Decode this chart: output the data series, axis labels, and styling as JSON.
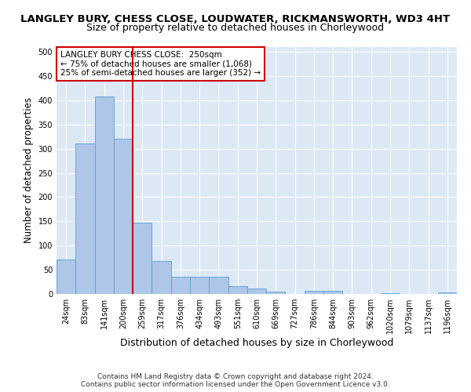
{
  "title": "LANGLEY BURY, CHESS CLOSE, LOUDWATER, RICKMANSWORTH, WD3 4HT",
  "subtitle": "Size of property relative to detached houses in Chorleywood",
  "xlabel": "Distribution of detached houses by size in Chorleywood",
  "ylabel": "Number of detached properties",
  "categories": [
    "24sqm",
    "83sqm",
    "141sqm",
    "200sqm",
    "259sqm",
    "317sqm",
    "376sqm",
    "434sqm",
    "493sqm",
    "551sqm",
    "610sqm",
    "669sqm",
    "727sqm",
    "786sqm",
    "844sqm",
    "903sqm",
    "962sqm",
    "1020sqm",
    "1079sqm",
    "1137sqm",
    "1196sqm"
  ],
  "values": [
    72,
    311,
    408,
    320,
    148,
    68,
    35,
    35,
    35,
    17,
    11,
    5,
    0,
    6,
    6,
    0,
    0,
    2,
    0,
    0,
    3
  ],
  "bar_color": "#aec6e8",
  "bar_edge_color": "#5a9fd4",
  "vline_pos": 3.5,
  "vline_color": "#cc0000",
  "annotation_text": "LANGLEY BURY CHESS CLOSE:  250sqm\n← 75% of detached houses are smaller (1,068)\n25% of semi-detached houses are larger (352) →",
  "annotation_box_color": "#ffffff",
  "annotation_box_edge_color": "#cc0000",
  "ylim": [
    0,
    510
  ],
  "yticks": [
    0,
    50,
    100,
    150,
    200,
    250,
    300,
    350,
    400,
    450,
    500
  ],
  "footer1": "Contains HM Land Registry data © Crown copyright and database right 2024.",
  "footer2": "Contains public sector information licensed under the Open Government Licence v3.0.",
  "bg_color": "#dce9f5",
  "fig_bg_color": "#ffffff",
  "title_fontsize": 9.5,
  "subtitle_fontsize": 9.0,
  "ylabel_fontsize": 8.5,
  "xlabel_fontsize": 9.0,
  "tick_fontsize": 7.0,
  "annotation_fontsize": 7.5,
  "footer_fontsize": 6.5
}
